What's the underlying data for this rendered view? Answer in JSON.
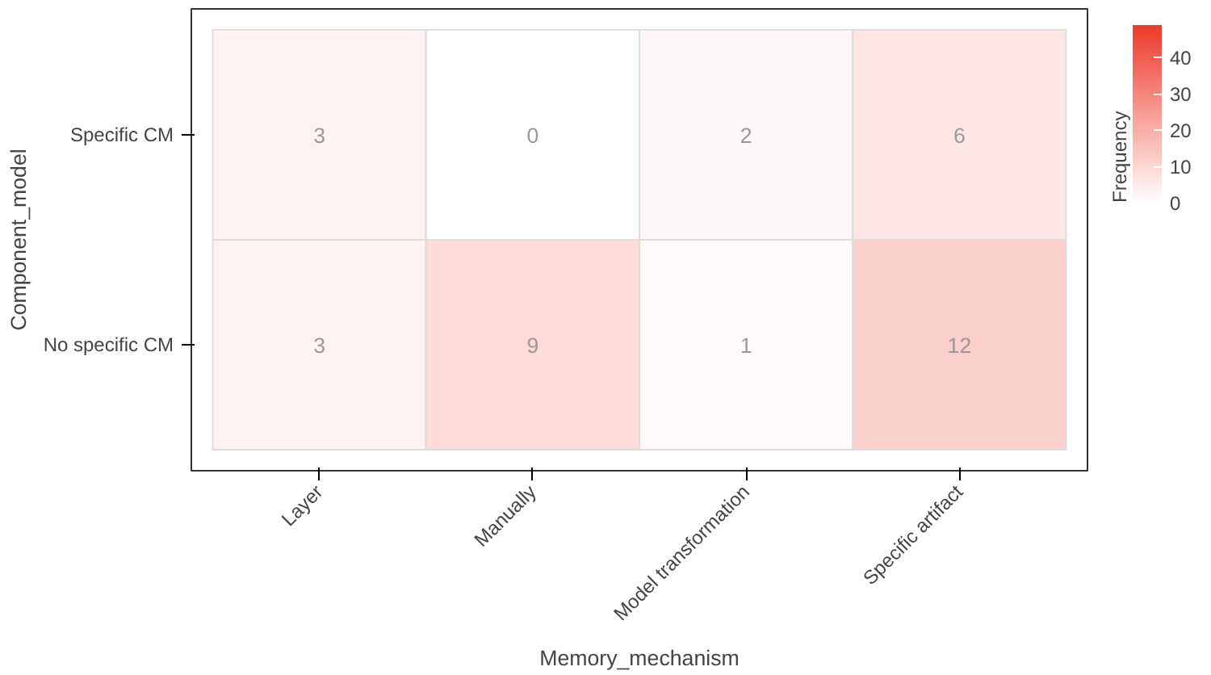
{
  "chart_data": {
    "type": "heatmap",
    "xlabel": "Memory_mechanism",
    "ylabel": "Component_model",
    "legend_title": "Frequency",
    "categories": [
      "Layer",
      "Manually",
      "Model transformation",
      "Specific artifact"
    ],
    "y_categories": [
      "Specific CM",
      "No specific CM"
    ],
    "cells": [
      [
        3,
        0,
        2,
        6
      ],
      [
        3,
        9,
        1,
        12
      ]
    ],
    "clim": [
      0,
      49
    ],
    "cticks": [
      0,
      10,
      20,
      30,
      40
    ],
    "data_labels": true,
    "grid": false,
    "colors": [
      "#ffffff",
      "#ee3a2a"
    ]
  }
}
